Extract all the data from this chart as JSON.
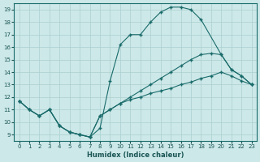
{
  "xlabel": "Humidex (Indice chaleur)",
  "bg_color": "#cde8e8",
  "grid_color": "#aacfcf",
  "line_color": "#1a6b6b",
  "xlim": [
    -0.5,
    23.5
  ],
  "ylim": [
    8.5,
    19.5
  ],
  "xticks": [
    0,
    1,
    2,
    3,
    4,
    5,
    6,
    7,
    8,
    9,
    10,
    11,
    12,
    13,
    14,
    15,
    16,
    17,
    18,
    19,
    20,
    21,
    22,
    23
  ],
  "yticks": [
    9,
    10,
    11,
    12,
    13,
    14,
    15,
    16,
    17,
    18,
    19
  ],
  "line1_x": [
    0,
    1,
    2,
    3,
    4,
    5,
    6,
    7,
    8,
    9,
    10,
    11,
    12,
    13,
    14,
    15,
    16,
    17,
    18,
    20,
    21,
    22,
    23
  ],
  "line1_y": [
    11.7,
    11.0,
    10.5,
    11.0,
    9.7,
    9.2,
    9.0,
    8.8,
    9.5,
    13.3,
    16.2,
    17.0,
    17.0,
    18.0,
    18.8,
    19.2,
    19.2,
    19.0,
    18.2,
    15.4,
    14.2,
    13.7,
    13.0
  ],
  "line2_x": [
    0,
    1,
    2,
    3,
    4,
    5,
    6,
    7,
    8,
    9,
    10,
    11,
    12,
    13,
    14,
    15,
    16,
    17,
    18,
    19,
    20,
    21,
    22,
    23
  ],
  "line2_y": [
    11.7,
    11.0,
    10.5,
    11.0,
    9.7,
    9.2,
    9.0,
    8.8,
    10.5,
    11.0,
    11.5,
    12.0,
    12.5,
    13.0,
    13.5,
    14.0,
    14.5,
    15.0,
    15.4,
    15.5,
    15.4,
    14.2,
    13.7,
    13.0
  ],
  "line3_x": [
    0,
    1,
    2,
    3,
    4,
    5,
    6,
    7,
    8,
    9,
    10,
    11,
    12,
    13,
    14,
    15,
    16,
    17,
    18,
    19,
    20,
    21,
    22,
    23
  ],
  "line3_y": [
    11.7,
    11.0,
    10.5,
    11.0,
    9.7,
    9.2,
    9.0,
    8.8,
    10.5,
    11.0,
    11.5,
    11.8,
    12.0,
    12.3,
    12.5,
    12.7,
    13.0,
    13.2,
    13.5,
    13.7,
    14.0,
    13.7,
    13.3,
    13.0
  ]
}
